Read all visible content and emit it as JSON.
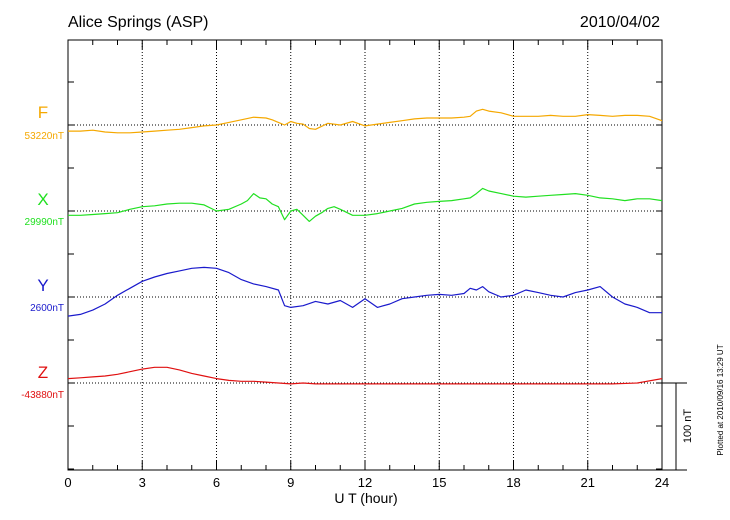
{
  "header": {
    "station": "Alice Springs (ASP)",
    "date": "2010/04/02"
  },
  "footnote": "Plotted at 2010/09/16 13:29 UT",
  "scale_label": "100 nT",
  "chart_data": {
    "type": "line",
    "xlabel": "U T (hour)",
    "ylabel": "",
    "xlim": [
      0,
      24
    ],
    "xticks": [
      0,
      3,
      6,
      9,
      12,
      15,
      18,
      21,
      24
    ],
    "x_minor_step": 1,
    "grid": true,
    "scale_bar_nT": 100,
    "series": [
      {
        "name": "F",
        "baseline_label": "53220nT",
        "color": "#f5a800",
        "x": [
          0,
          0.5,
          1,
          1.5,
          2,
          2.5,
          3,
          3.5,
          4,
          4.5,
          5,
          5.5,
          6,
          6.5,
          7,
          7.5,
          8,
          8.25,
          8.5,
          8.75,
          9,
          9.25,
          9.5,
          9.75,
          10,
          10.5,
          11,
          11.5,
          12,
          12.5,
          13,
          13.5,
          14,
          14.5,
          15,
          15.5,
          16,
          16.25,
          16.5,
          16.75,
          17,
          17.5,
          18,
          18.5,
          19,
          19.5,
          20,
          20.5,
          21,
          21.5,
          22,
          22.5,
          23,
          23.5,
          24
        ],
        "y": [
          -7,
          -7,
          -6,
          -8,
          -9,
          -9,
          -8,
          -7,
          -6,
          -5,
          -3,
          -1,
          0,
          3,
          6,
          9,
          8,
          6,
          3,
          0,
          4,
          2,
          1,
          -4,
          -5,
          2,
          0,
          4,
          -1,
          1,
          3,
          5,
          7,
          8,
          8,
          8,
          9,
          10,
          16,
          18,
          16,
          14,
          10,
          10,
          10,
          11,
          10,
          10,
          12,
          11,
          10,
          11,
          11,
          10,
          5
        ]
      },
      {
        "name": "X",
        "baseline_label": "29990nT",
        "color": "#21e021",
        "x": [
          0,
          0.5,
          1,
          1.5,
          2,
          2.5,
          3,
          3.5,
          4,
          4.5,
          5,
          5.5,
          6,
          6.5,
          7,
          7.25,
          7.5,
          7.75,
          8,
          8.25,
          8.5,
          8.75,
          9,
          9.25,
          9.5,
          9.75,
          10,
          10.25,
          10.5,
          10.75,
          11,
          11.5,
          12,
          12.5,
          13,
          13.5,
          14,
          14.5,
          15,
          15.5,
          16,
          16.25,
          16.5,
          16.75,
          17,
          17.5,
          18,
          18.5,
          19,
          19.5,
          20,
          20.5,
          21,
          21.5,
          22,
          22.5,
          23,
          23.5,
          24
        ],
        "y": [
          -5,
          -5,
          -4,
          -3,
          -2,
          2,
          5,
          6,
          8,
          9,
          9,
          7,
          0,
          2,
          8,
          12,
          20,
          15,
          14,
          8,
          5,
          -10,
          0,
          2,
          -5,
          -12,
          -6,
          -2,
          3,
          5,
          2,
          -5,
          -5,
          -3,
          0,
          3,
          8,
          10,
          11,
          12,
          14,
          15,
          20,
          26,
          23,
          20,
          17,
          16,
          17,
          18,
          19,
          20,
          18,
          15,
          14,
          12,
          14,
          14,
          12
        ]
      },
      {
        "name": "Y",
        "baseline_label": "2600nT",
        "color": "#1a1acc",
        "x": [
          0,
          0.5,
          1,
          1.5,
          2,
          2.5,
          3,
          3.5,
          4,
          4.5,
          5,
          5.5,
          6,
          6.5,
          7,
          7.5,
          8,
          8.5,
          8.75,
          9,
          9.5,
          10,
          10.5,
          11,
          11.5,
          12,
          12.5,
          13,
          13.5,
          14,
          14.5,
          15,
          15.5,
          16,
          16.25,
          16.5,
          16.75,
          17,
          17.5,
          18,
          18.5,
          19,
          19.5,
          20,
          20.5,
          21,
          21.5,
          22,
          22.5,
          23,
          23.5,
          24
        ],
        "y": [
          -22,
          -20,
          -15,
          -8,
          2,
          10,
          18,
          23,
          27,
          30,
          33,
          34,
          33,
          28,
          20,
          15,
          12,
          8,
          -10,
          -12,
          -10,
          -5,
          -8,
          -4,
          -12,
          -2,
          -12,
          -8,
          -2,
          0,
          2,
          3,
          2,
          4,
          10,
          8,
          12,
          6,
          0,
          2,
          8,
          5,
          2,
          0,
          5,
          8,
          12,
          0,
          -8,
          -12,
          -18,
          -18
        ]
      },
      {
        "name": "Z",
        "baseline_label": "-43880nT",
        "color": "#e01010",
        "x": [
          0,
          0.5,
          1,
          1.5,
          2,
          2.5,
          3,
          3.5,
          4,
          4.5,
          5,
          5.5,
          6,
          6.5,
          7,
          7.5,
          8,
          8.5,
          9,
          9.5,
          10,
          10.5,
          11,
          11.5,
          12,
          13,
          14,
          15,
          16,
          17,
          18,
          19,
          20,
          21,
          22,
          23,
          24
        ],
        "y": [
          5,
          6,
          7,
          8,
          10,
          13,
          16,
          18,
          18,
          15,
          11,
          8,
          5,
          3,
          2,
          2,
          1,
          0,
          -1,
          0,
          -1,
          -1,
          -1,
          -1,
          -1,
          -1,
          -1,
          -1,
          -1,
          -1,
          -1,
          -1,
          -1,
          -1,
          -1,
          0,
          5
        ]
      }
    ]
  }
}
